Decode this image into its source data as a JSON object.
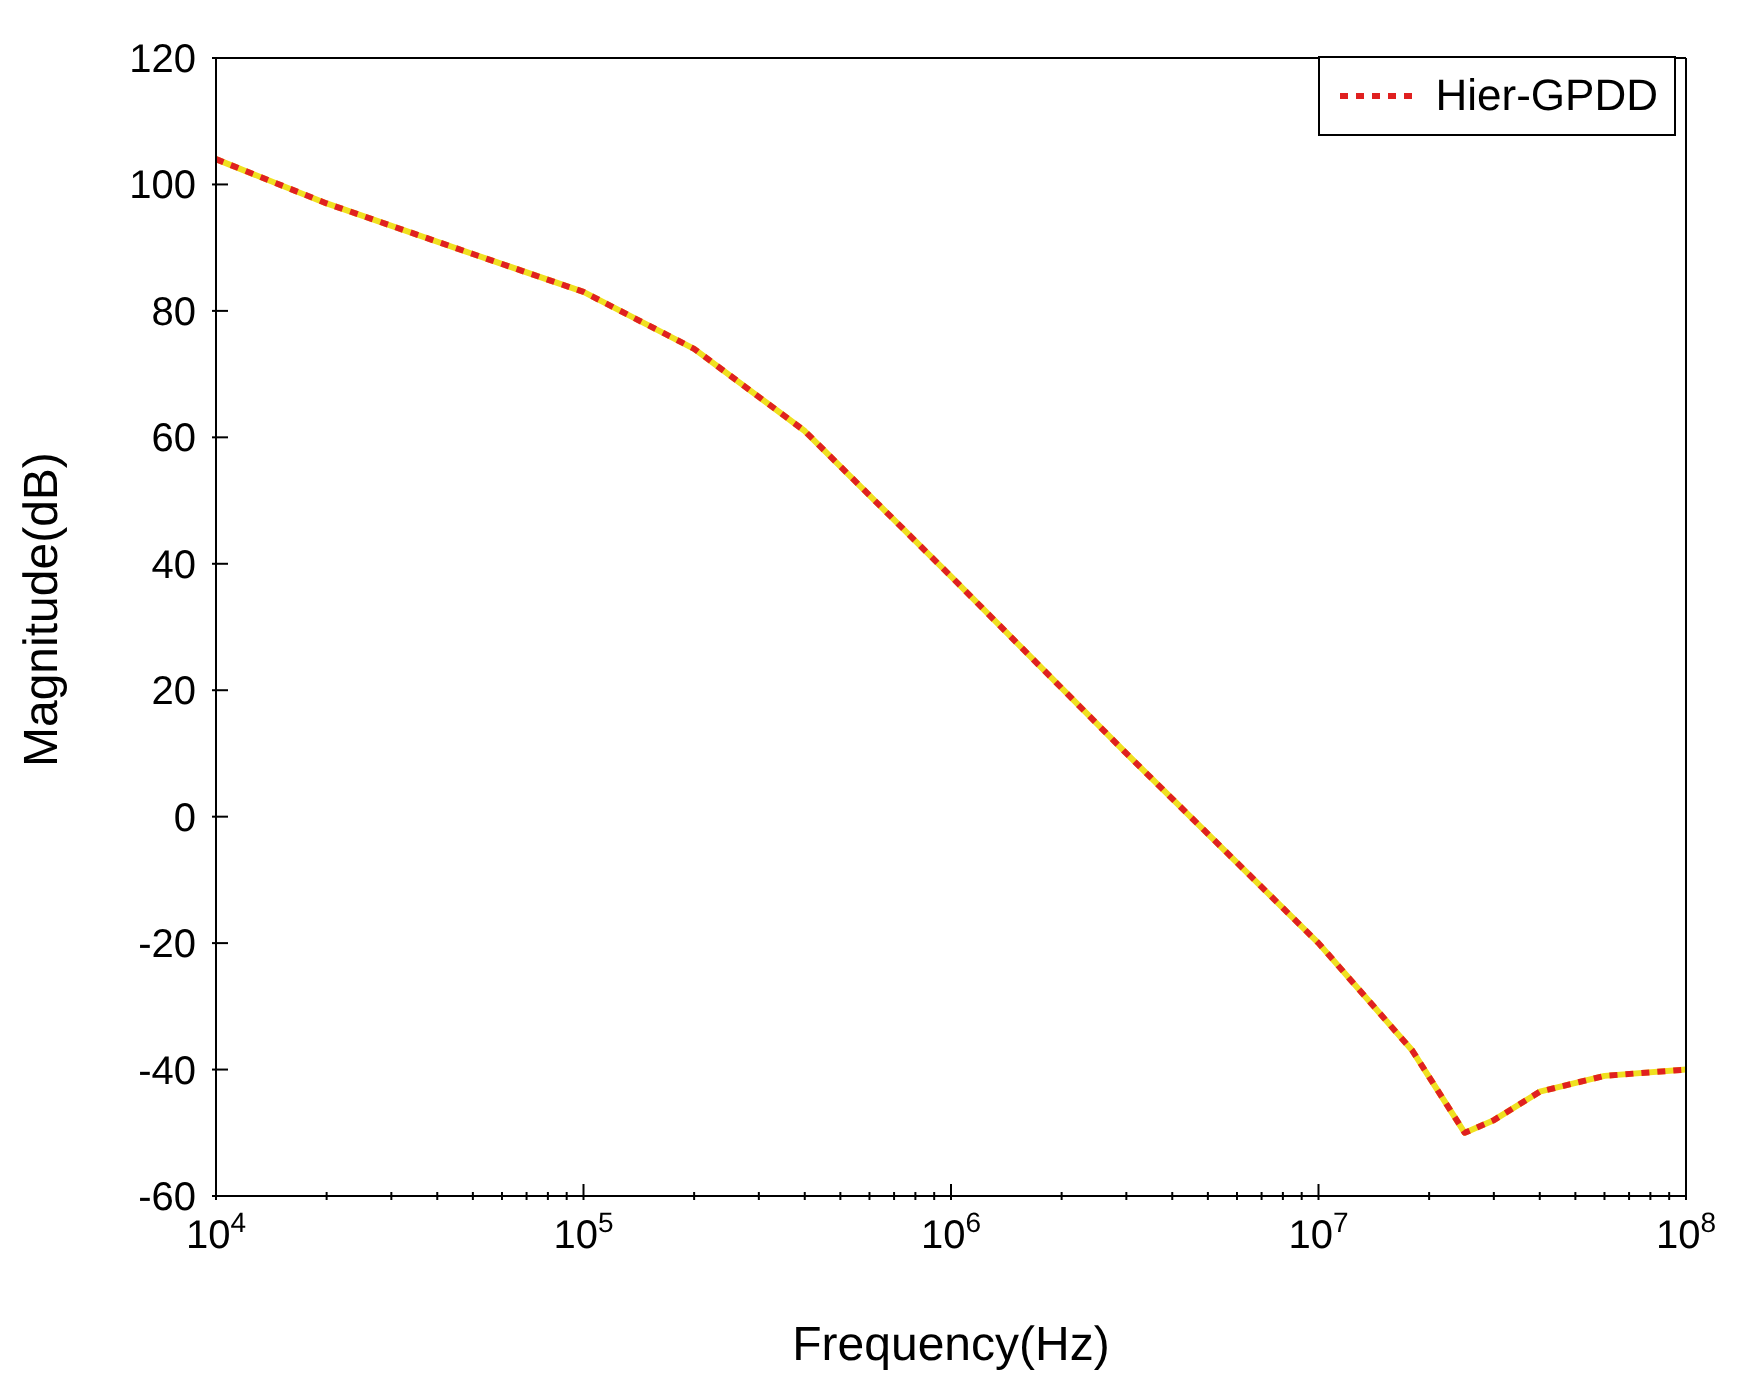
{
  "chart_data": {
    "type": "line",
    "xlabel": "Frequency(Hz)",
    "ylabel": "Magnitude(dB)",
    "log": "x",
    "grid": false,
    "legend": "top right",
    "line_style": "solid",
    "marker": "none",
    "x": [
      10000,
      20000,
      50000,
      100000,
      200000,
      400000,
      1000000,
      3000000,
      10000000,
      18000000,
      25000000,
      30000000,
      40000000,
      60000000,
      100000000
    ],
    "series": [
      {
        "color": "#f0e020",
        "values": [
          104,
          97,
          89,
          83,
          74,
          61,
          38,
          10,
          -20,
          -37,
          -50,
          -48,
          -43.5,
          -41,
          -40
        ]
      },
      {
        "name": "Hier-GPDD",
        "color": "#e02020",
        "line_style": "dotted",
        "values": [
          104,
          97,
          89,
          83,
          74,
          61,
          38,
          10,
          -20,
          -37,
          -50,
          -48,
          -43.5,
          -41,
          -40
        ]
      }
    ],
    "xlim": [
      10000,
      100000000
    ],
    "xticks": [
      {
        "value": 10000,
        "label": "10$^{4}$"
      },
      {
        "value": 20000,
        "label": null
      },
      {
        "value": 30000,
        "label": null
      },
      {
        "value": 40000,
        "label": null
      },
      {
        "value": 50000,
        "label": null
      },
      {
        "value": 60000,
        "label": null
      },
      {
        "value": 70000,
        "label": null
      },
      {
        "value": 80000,
        "label": null
      },
      {
        "value": 90000,
        "label": null
      },
      {
        "value": 100000,
        "label": "10$^{5}$"
      },
      {
        "value": 200000,
        "label": null
      },
      {
        "value": 300000,
        "label": null
      },
      {
        "value": 400000,
        "label": null
      },
      {
        "value": 500000,
        "label": null
      },
      {
        "value": 600000,
        "label": null
      },
      {
        "value": 700000,
        "label": null
      },
      {
        "value": 800000,
        "label": null
      },
      {
        "value": 900000,
        "label": null
      },
      {
        "value": 1000000,
        "label": "10$^{6}$"
      },
      {
        "value": 2000000,
        "label": null
      },
      {
        "value": 3000000,
        "label": null
      },
      {
        "value": 4000000,
        "label": null
      },
      {
        "value": 5000000,
        "label": null
      },
      {
        "value": 6000000,
        "label": null
      },
      {
        "value": 7000000,
        "label": null
      },
      {
        "value": 8000000,
        "label": null
      },
      {
        "value": 9000000,
        "label": null
      },
      {
        "value": 10000000,
        "label": "10$^{7}$"
      },
      {
        "value": 20000000,
        "label": null
      },
      {
        "value": 30000000,
        "label": null
      },
      {
        "value": 40000000,
        "label": null
      },
      {
        "value": 50000000,
        "label": null
      },
      {
        "value": 60000000,
        "label": null
      },
      {
        "value": 70000000,
        "label": null
      },
      {
        "value": 80000000,
        "label": null
      },
      {
        "value": 90000000,
        "label": null
      },
      {
        "value": 100000000,
        "label": "10$^{8}$"
      }
    ],
    "ylim": [
      -60,
      120
    ],
    "yticks": [
      -60,
      -40,
      -20,
      0,
      20,
      40,
      60,
      80,
      100,
      120
    ]
  }
}
